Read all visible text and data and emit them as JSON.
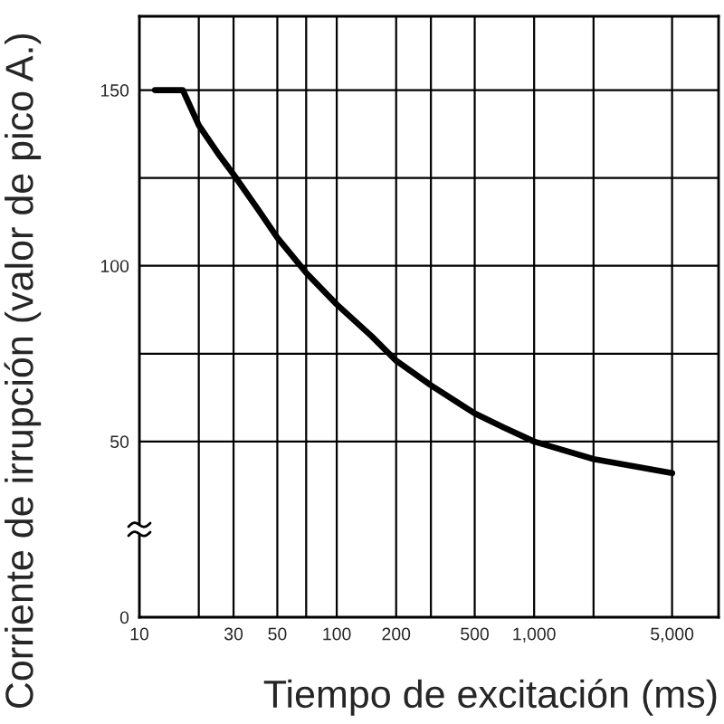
{
  "chart_data": {
    "type": "line",
    "xlabel": "Tiempo de excitación (ms)",
    "ylabel": "Corriente de irrupción (valor de pico A.)",
    "x": [
      12,
      16.6,
      20,
      25,
      30,
      40,
      50,
      70,
      100,
      150,
      200,
      300,
      500,
      700,
      1000,
      2000,
      5000
    ],
    "series": [
      {
        "color": "#000000",
        "values": [
          150,
          150,
          140,
          132,
          126,
          116,
          108,
          98,
          89,
          80,
          73,
          66,
          58,
          54,
          50,
          45,
          41
        ]
      }
    ],
    "log": "x",
    "xlim": [
      10,
      8600
    ],
    "xticks": [
      10,
      {
        "value": 20,
        "label": null
      },
      30,
      50,
      {
        "value": 70,
        "label": null
      },
      100,
      200,
      {
        "value": 300,
        "label": null
      },
      500,
      {
        "value": 1000,
        "label": "1,000"
      },
      {
        "value": 2000,
        "label": null
      },
      {
        "value": 5000,
        "label": "5,000"
      }
    ],
    "ylim": [
      0,
      171
    ],
    "yticks": [
      0,
      50,
      {
        "value": 75,
        "label": null
      },
      100,
      {
        "value": 125,
        "label": null
      },
      150
    ],
    "grid": true,
    "line_style": "solid"
  }
}
